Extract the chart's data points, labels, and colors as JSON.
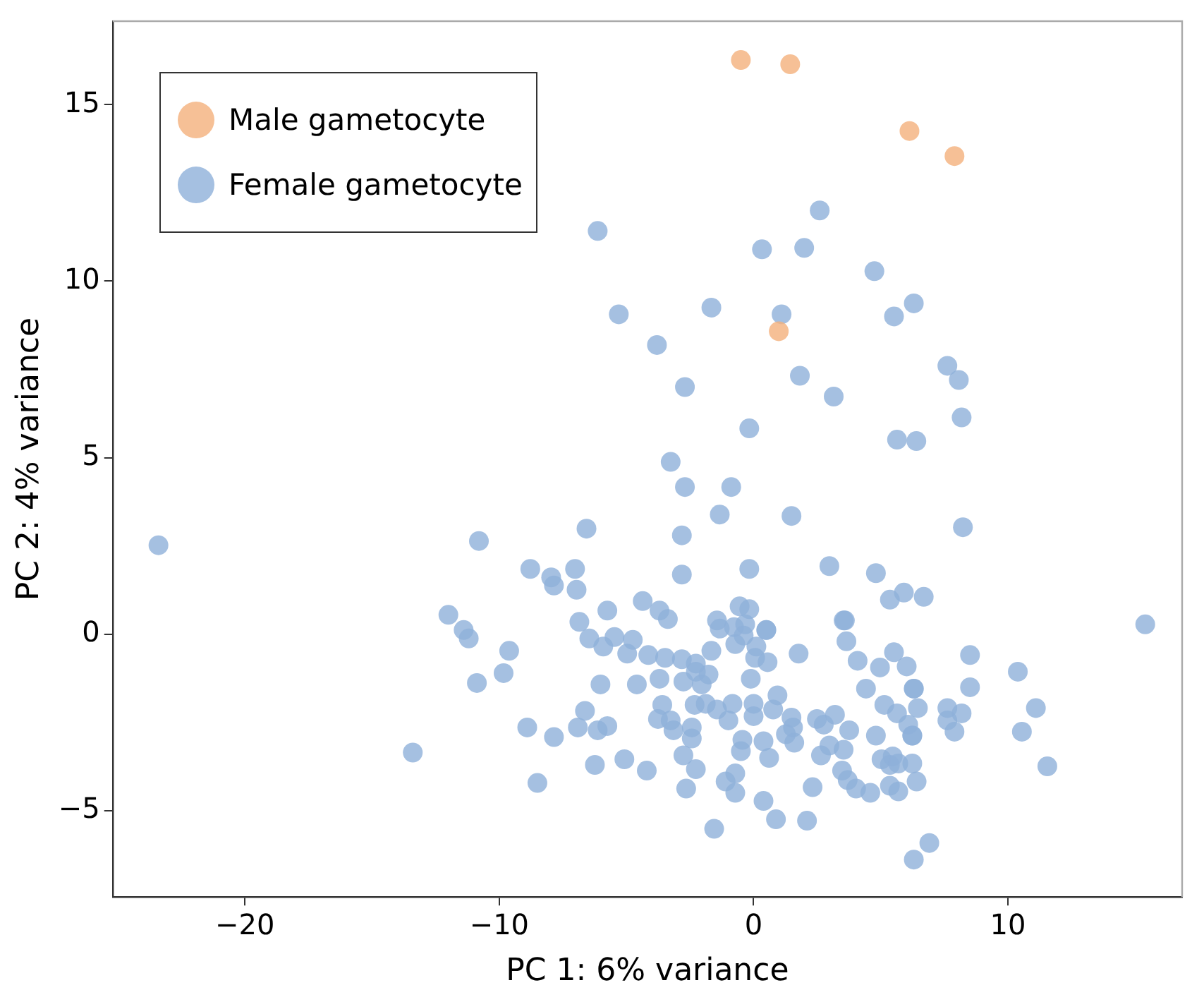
{
  "chart_data": {
    "type": "scatter",
    "xlabel": "PC 1: 6% variance",
    "ylabel": "PC 2: 4% variance",
    "xlim": [
      -25.2,
      16.85
    ],
    "ylim": [
      -7.44,
      17.36
    ],
    "xticks": [
      -20,
      -10,
      0,
      10
    ],
    "yticks": [
      -5,
      0,
      5,
      10,
      15
    ],
    "grid": false,
    "legend": "top left",
    "marker": "circle",
    "series": [
      {
        "name": "Male gametocyte",
        "color": "#f4b07c",
        "x": [
          -0.5,
          1.44,
          6.13,
          7.9,
          0.99
        ],
        "values": [
          16.26,
          16.14,
          14.25,
          13.54,
          8.58
        ]
      },
      {
        "name": "Female gametocyte",
        "color": "#8fb0da",
        "x": [
          -23.4,
          -13.4,
          -6.13,
          2.6,
          0.33,
          1.99,
          4.75,
          -5.3,
          -1.66,
          1.1,
          6.3,
          5.52,
          -3.8,
          1.82,
          -2.7,
          3.15,
          7.62,
          8.07,
          -0.17,
          8.18,
          5.64,
          6.4,
          -3.26,
          -2.7,
          -0.88,
          1.49,
          -1.33,
          -6.57,
          8.23,
          -2.82,
          -10.8,
          2.98,
          -0.17,
          -8.78,
          -7.02,
          -2.82,
          4.81,
          -7.96,
          -7.85,
          -6.96,
          5.91,
          5.36,
          6.69,
          -12.0,
          -11.4,
          -11.2,
          -4.36,
          -3.7,
          -3.37,
          -5.75,
          -0.55,
          -0.17,
          0.5,
          0.5,
          3.54,
          -1.44,
          -1.33,
          -0.77,
          -0.33,
          -0.39,
          -0.72,
          0.11,
          0.06,
          -0.11,
          -6.85,
          -9.61,
          -9.83,
          -6.46,
          -5.91,
          -5.47,
          -4.75,
          -4.97,
          -4.14,
          -3.48,
          -2.82,
          -2.27,
          -1.66,
          -6.02,
          -4.59,
          -3.7,
          -2.76,
          -2.27,
          -1.77,
          -2.04,
          -3.59,
          -2.32,
          -1.88,
          -1.44,
          -0.83,
          -0.99,
          0.0,
          0.0,
          -6.63,
          -3.76,
          -3.26,
          -3.15,
          -2.43,
          -2.43,
          -8.9,
          -7.85,
          -6.91,
          -6.13,
          -5.75,
          -0.44,
          -0.5,
          0.39,
          -2.76,
          -5.08,
          -6.24,
          -4.2,
          -2.27,
          -0.72,
          -1.1,
          -0.72,
          -2.65,
          -8.5,
          0.39,
          -1.55,
          15.4,
          3.59,
          3.65,
          1.77,
          0.55,
          4.09,
          4.97,
          5.52,
          6.02,
          8.51,
          10.39,
          8.51,
          11.1,
          10.55,
          11.55,
          4.42,
          6.3,
          6.3,
          5.14,
          5.64,
          6.46,
          6.08,
          6.24,
          6.24,
          7.62,
          7.62,
          8.18,
          7.9,
          4.81,
          3.76,
          3.2,
          2.49,
          2.76,
          1.49,
          0.94,
          0.77,
          1.55,
          1.27,
          1.6,
          0.61,
          2.98,
          2.65,
          3.54,
          3.48,
          3.7,
          4.03,
          4.59,
          2.32,
          5.03,
          5.47,
          5.36,
          5.69,
          6.24,
          6.41,
          5.36,
          5.69,
          0.88,
          2.1,
          6.91,
          6.3,
          -10.88
        ],
        "values": [
          2.52,
          -3.35,
          11.42,
          12.0,
          10.9,
          10.94,
          10.28,
          9.06,
          9.25,
          9.06,
          9.37,
          9.0,
          8.19,
          7.32,
          7.0,
          6.73,
          7.6,
          7.2,
          5.83,
          6.14,
          5.51,
          5.47,
          4.88,
          4.17,
          4.17,
          3.35,
          3.39,
          2.99,
          3.03,
          2.8,
          2.64,
          1.93,
          1.85,
          1.85,
          1.85,
          1.69,
          1.73,
          1.61,
          1.38,
          1.26,
          1.18,
          0.98,
          1.06,
          0.55,
          0.12,
          -0.12,
          0.94,
          0.67,
          0.43,
          0.67,
          0.79,
          0.71,
          0.12,
          0.12,
          0.39,
          0.39,
          0.16,
          0.2,
          0.28,
          -0.04,
          -0.28,
          -0.35,
          -0.67,
          -1.26,
          0.35,
          -0.47,
          -1.1,
          -0.12,
          -0.35,
          -0.08,
          -0.16,
          -0.55,
          -0.59,
          -0.67,
          -0.71,
          -0.83,
          -0.47,
          -1.42,
          -1.42,
          -1.26,
          -1.34,
          -1.06,
          -1.14,
          -1.42,
          -2.0,
          -2.0,
          -1.97,
          -2.13,
          -1.97,
          -2.44,
          -1.97,
          -2.32,
          -2.17,
          -2.4,
          -2.44,
          -2.72,
          -2.64,
          -2.95,
          -2.64,
          -2.91,
          -2.64,
          -2.72,
          -2.6,
          -2.99,
          -3.31,
          -3.03,
          -3.43,
          -3.54,
          -3.7,
          -3.86,
          -3.82,
          -3.94,
          -4.17,
          -4.49,
          -4.37,
          -4.21,
          -4.72,
          -5.51,
          0.28,
          0.39,
          -0.2,
          -0.55,
          -0.79,
          -0.75,
          -0.94,
          -0.51,
          -0.91,
          -0.59,
          -1.06,
          -1.5,
          -2.09,
          -2.76,
          -3.74,
          -1.54,
          -1.54,
          -1.54,
          -2.0,
          -2.24,
          -2.09,
          -2.56,
          -2.87,
          -2.87,
          -2.09,
          -2.44,
          -2.24,
          -2.76,
          -2.87,
          -2.72,
          -2.28,
          -2.4,
          -2.56,
          -2.36,
          -1.73,
          -2.13,
          -2.64,
          -2.83,
          -3.07,
          -3.5,
          -3.15,
          -3.43,
          -3.27,
          -3.86,
          -4.13,
          -4.37,
          -4.49,
          -4.33,
          -3.54,
          -3.46,
          -3.7,
          -3.66,
          -3.66,
          -4.17,
          -4.29,
          -4.45,
          -5.24,
          -5.28,
          -5.91,
          -6.38,
          -1.38
        ]
      }
    ]
  }
}
